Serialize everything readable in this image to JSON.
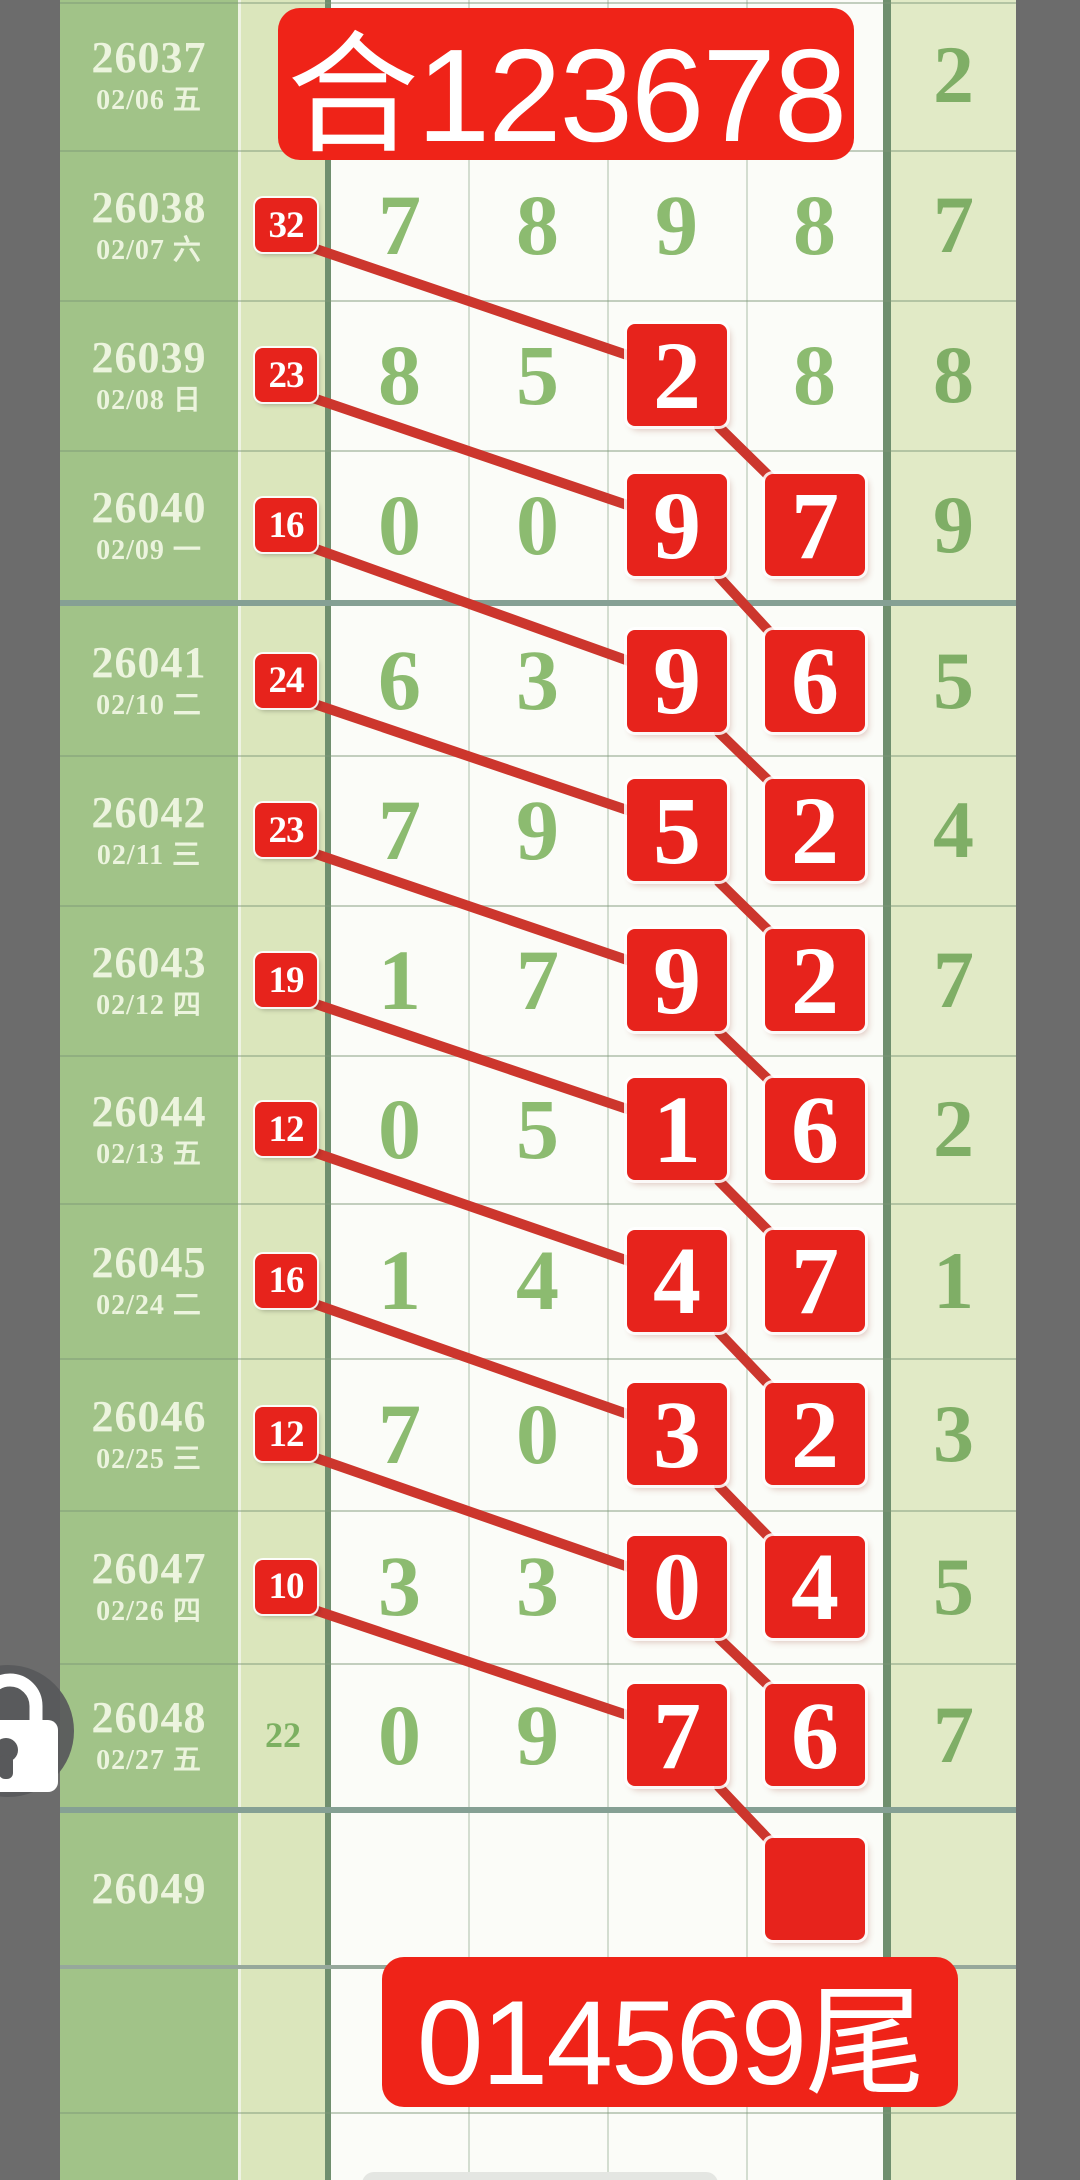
{
  "colors": {
    "accent_red": "#e7231c",
    "banner_red": "#ef2318",
    "line_red": "#cc362d",
    "period_green": "#a1c388",
    "pale_green": "#dbe6bc",
    "right_green": "#e1eac6",
    "digit_green": "#8cbb70"
  },
  "icons": {
    "floating_button": "lock-icon"
  },
  "chart_data": {
    "type": "table",
    "title_banner": "合123678",
    "footer_banner": "014569尾",
    "rows": [
      {
        "period": "26037",
        "date": "02/06 五",
        "badge": "",
        "badge_style": "none",
        "cells": [
          "",
          "",
          "",
          ""
        ],
        "highlights": [],
        "right": "2"
      },
      {
        "period": "26038",
        "date": "02/07 六",
        "badge": "32",
        "badge_style": "red",
        "cells": [
          "7",
          "8",
          "9",
          "8"
        ],
        "highlights": [],
        "right": "7"
      },
      {
        "period": "26039",
        "date": "02/08 日",
        "badge": "23",
        "badge_style": "red",
        "cells": [
          "8",
          "5",
          "2",
          "8"
        ],
        "highlights": [
          2
        ],
        "right": "8"
      },
      {
        "period": "26040",
        "date": "02/09 一",
        "badge": "16",
        "badge_style": "red",
        "cells": [
          "0",
          "0",
          "9",
          "7"
        ],
        "highlights": [
          2,
          3
        ],
        "right": "9",
        "divider_below": "thick"
      },
      {
        "period": "26041",
        "date": "02/10 二",
        "badge": "24",
        "badge_style": "red",
        "cells": [
          "6",
          "3",
          "9",
          "6"
        ],
        "highlights": [
          2,
          3
        ],
        "right": "5"
      },
      {
        "period": "26042",
        "date": "02/11 三",
        "badge": "23",
        "badge_style": "red",
        "cells": [
          "7",
          "9",
          "5",
          "2"
        ],
        "highlights": [
          2,
          3
        ],
        "right": "4"
      },
      {
        "period": "26043",
        "date": "02/12 四",
        "badge": "19",
        "badge_style": "red",
        "cells": [
          "1",
          "7",
          "9",
          "2"
        ],
        "highlights": [
          2,
          3
        ],
        "right": "7"
      },
      {
        "period": "26044",
        "date": "02/13 五",
        "badge": "12",
        "badge_style": "red",
        "cells": [
          "0",
          "5",
          "1",
          "6"
        ],
        "highlights": [
          2,
          3
        ],
        "right": "2"
      },
      {
        "period": "26045",
        "date": "02/24 二",
        "badge": "16",
        "badge_style": "red",
        "cells": [
          "1",
          "4",
          "4",
          "7"
        ],
        "highlights": [
          2,
          3
        ],
        "right": "1"
      },
      {
        "period": "26046",
        "date": "02/25 三",
        "badge": "12",
        "badge_style": "red",
        "cells": [
          "7",
          "0",
          "3",
          "2"
        ],
        "highlights": [
          2,
          3
        ],
        "right": "3"
      },
      {
        "period": "26047",
        "date": "02/26 四",
        "badge": "10",
        "badge_style": "red",
        "cells": [
          "3",
          "3",
          "0",
          "4"
        ],
        "highlights": [
          2,
          3
        ],
        "right": "5"
      },
      {
        "period": "26048",
        "date": "02/27 五",
        "badge": "22",
        "badge_style": "text",
        "cells": [
          "0",
          "9",
          "7",
          "6"
        ],
        "highlights": [
          2,
          3
        ],
        "right": "7",
        "divider_below": "thick"
      },
      {
        "period": "26049",
        "date": "",
        "badge": "",
        "badge_style": "none",
        "cells": [
          "",
          "",
          "",
          ""
        ],
        "highlights": [
          3
        ],
        "right": "",
        "divider_below": "medium"
      }
    ]
  }
}
